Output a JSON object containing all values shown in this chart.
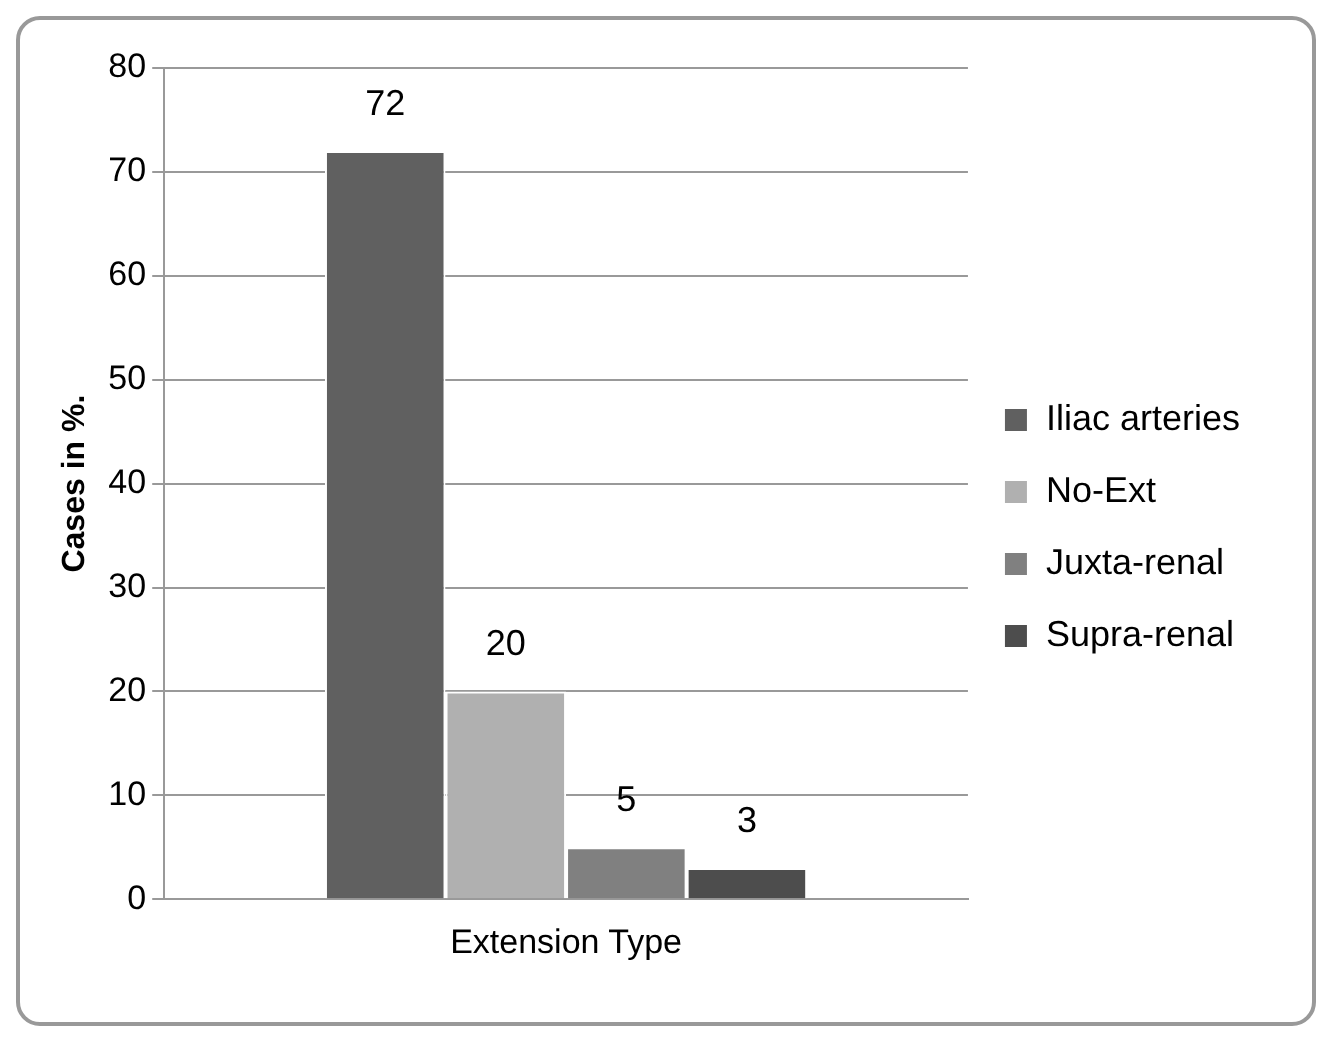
{
  "chart_data": {
    "type": "bar",
    "ylabel": "Cases in %.",
    "categories": [
      "Extension Type"
    ],
    "series": [
      {
        "name": "Iliac arteries",
        "color": "#606060",
        "values": [
          72
        ]
      },
      {
        "name": "No-Ext",
        "color": "#b0b0b0",
        "values": [
          20
        ]
      },
      {
        "name": "Juxta-renal",
        "color": "#808080",
        "values": [
          5
        ]
      },
      {
        "name": "Supra-renal",
        "color": "#4d4d4d",
        "values": [
          3
        ]
      }
    ],
    "ylim": [
      0,
      80
    ],
    "yticks": [
      0,
      10,
      20,
      30,
      40,
      50,
      60,
      70,
      80
    ],
    "grid": "y",
    "legend": "right",
    "data_labels": true
  }
}
